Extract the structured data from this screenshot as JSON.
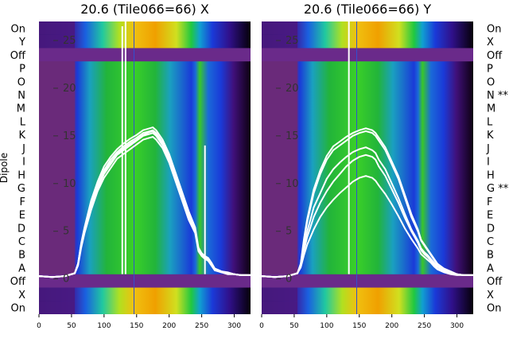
{
  "chart_data": [
    {
      "type": "heatmap",
      "title": "20.6 (Tile066=66) X",
      "ylabel": "Dipole",
      "xlim": [
        0,
        325
      ],
      "x_ticks": [
        0,
        50,
        100,
        150,
        200,
        250,
        300
      ],
      "overlay_y_ticks": [
        0,
        5,
        10,
        15,
        20,
        25
      ],
      "overlay_ylim": [
        -3.7,
        27
      ],
      "rows": [
        "On",
        "Y",
        "Off",
        "P",
        "O",
        "N",
        "M",
        "L",
        "K",
        "J",
        "I",
        "H",
        "G",
        "F",
        "E",
        "D",
        "C",
        "B",
        "A",
        "Off",
        "X",
        "On"
      ],
      "flagged_rows": [],
      "curve_x": [
        0,
        20,
        40,
        55,
        60,
        65,
        70,
        80,
        90,
        100,
        110,
        120,
        130,
        140,
        150,
        160,
        170,
        175,
        180,
        190,
        200,
        210,
        220,
        230,
        240,
        245,
        250,
        255,
        260,
        265,
        270,
        280,
        290,
        300,
        310,
        320,
        325
      ],
      "series": [
        {
          "name": "",
          "values": [
            0.3,
            0.2,
            0.3,
            0.6,
            1.5,
            3.5,
            5,
            7.5,
            9.5,
            11,
            12,
            13,
            13.5,
            14,
            14.5,
            15,
            15.2,
            15.3,
            15,
            14,
            12.5,
            10.5,
            8.5,
            6.5,
            5,
            3,
            2.5,
            2.2,
            2,
            1.5,
            1,
            0.7,
            0.6,
            0.5,
            0.4,
            0.4,
            0.4
          ]
        },
        {
          "name": "",
          "values": [
            0.3,
            0.2,
            0.3,
            0.6,
            1.6,
            3.7,
            5.2,
            7.8,
            9.8,
            11.4,
            12.5,
            13.3,
            13.9,
            14.4,
            14.8,
            15.3,
            15.5,
            15.6,
            15.3,
            14.3,
            12.8,
            10.8,
            8.8,
            6.8,
            5.2,
            3.2,
            2.6,
            2.3,
            2.1,
            1.6,
            1.1,
            0.8,
            0.6,
            0.5,
            0.4,
            0.4,
            0.4
          ]
        },
        {
          "name": "",
          "values": [
            0.3,
            0.2,
            0.3,
            0.6,
            1.4,
            3.3,
            4.8,
            7.2,
            9.2,
            10.6,
            11.6,
            12.6,
            13.1,
            13.6,
            14.1,
            14.6,
            14.8,
            14.9,
            14.6,
            13.7,
            12.2,
            10.2,
            8.2,
            6.2,
            4.8,
            2.9,
            2.4,
            2.1,
            1.9,
            1.4,
            0.9,
            0.7,
            0.5,
            0.5,
            0.4,
            0.4,
            0.4
          ]
        },
        {
          "name": "",
          "values": [
            0.3,
            0.2,
            0.3,
            0.6,
            1.6,
            3.8,
            5.4,
            8.2,
            10.2,
            11.8,
            12.8,
            13.6,
            14.2,
            14.7,
            15.1,
            15.6,
            15.8,
            15.9,
            15.6,
            14.6,
            13.1,
            11.1,
            9.1,
            7.1,
            5.4,
            3.3,
            2.7,
            2.4,
            2.2,
            1.7,
            1.1,
            0.8,
            0.7,
            0.5,
            0.4,
            0.4,
            0.4
          ]
        },
        {
          "name": "",
          "values": [
            0.3,
            0.2,
            0.3,
            0.6,
            1.5,
            3.6,
            5.1,
            7.6,
            9.6,
            11.2,
            12.2,
            13.1,
            13.7,
            14.2,
            14.6,
            15.1,
            15.4,
            15.5,
            15.2,
            14.2,
            12.6,
            10.6,
            8.6,
            6.6,
            5.1,
            3.1,
            2.5,
            2.2,
            2.0,
            1.5,
            1.0,
            0.7,
            0.6,
            0.5,
            0.4,
            0.4,
            0.4
          ]
        }
      ],
      "spikes": [
        {
          "x": 128,
          "top": 26.5
        },
        {
          "x": 133,
          "top": 27
        },
        {
          "x": 255,
          "top": 14
        }
      ]
    },
    {
      "type": "heatmap",
      "title": "20.6 (Tile066=66) Y",
      "ylabel": "",
      "xlim": [
        0,
        325
      ],
      "x_ticks": [
        0,
        50,
        100,
        150,
        200,
        250,
        300
      ],
      "overlay_y_ticks": [
        0,
        5,
        10,
        15,
        20,
        25
      ],
      "overlay_ylim": [
        -3.7,
        27
      ],
      "rows": [
        "On",
        "X",
        "Off",
        "P",
        "O",
        "N **",
        "M",
        "L",
        "K",
        "J",
        "I",
        "H",
        "G **",
        "F",
        "E",
        "D",
        "C",
        "B",
        "A",
        "Off",
        "X",
        "On"
      ],
      "flagged_rows": [
        "N **",
        "G **"
      ],
      "curve_x": [
        0,
        20,
        40,
        55,
        60,
        65,
        70,
        80,
        90,
        100,
        110,
        120,
        130,
        140,
        150,
        160,
        170,
        175,
        180,
        190,
        200,
        210,
        220,
        230,
        240,
        245,
        250,
        255,
        260,
        265,
        270,
        280,
        290,
        300,
        310,
        320,
        325
      ],
      "series": [
        {
          "name": "",
          "values": [
            0.3,
            0.2,
            0.3,
            0.6,
            1.5,
            4,
            6,
            9,
            11,
            12.5,
            13.5,
            14,
            14.5,
            15,
            15.3,
            15.5,
            15.3,
            15,
            14.5,
            13.5,
            12,
            10.5,
            8.5,
            6.5,
            5,
            4,
            3.5,
            3,
            2.5,
            2,
            1.5,
            1,
            0.7,
            0.5,
            0.4,
            0.4,
            0.4
          ]
        },
        {
          "name": "",
          "values": [
            0.3,
            0.2,
            0.3,
            0.6,
            1.5,
            3.5,
            5,
            7.5,
            9,
            10.5,
            11.5,
            12.2,
            12.8,
            13.3,
            13.6,
            13.8,
            13.5,
            13.2,
            12.5,
            11.5,
            10,
            8.5,
            6.8,
            5.2,
            4,
            3.2,
            2.8,
            2.5,
            2.1,
            1.7,
            1.3,
            0.9,
            0.6,
            0.5,
            0.4,
            0.4,
            0.4
          ]
        },
        {
          "name": "",
          "values": [
            0.3,
            0.2,
            0.3,
            0.6,
            1.4,
            3,
            4.4,
            6.5,
            8,
            9.2,
            10.2,
            11,
            11.8,
            12.4,
            12.8,
            13,
            12.8,
            12.5,
            11.8,
            10.8,
            9.4,
            8,
            6.4,
            5,
            3.8,
            3,
            2.6,
            2.3,
            1.9,
            1.5,
            1.1,
            0.8,
            0.6,
            0.5,
            0.4,
            0.4,
            0.4
          ]
        },
        {
          "name": "",
          "values": [
            0.3,
            0.2,
            0.3,
            0.6,
            1.2,
            2.5,
            3.6,
            5.2,
            6.5,
            7.5,
            8.3,
            9,
            9.6,
            10.2,
            10.6,
            10.8,
            10.6,
            10.3,
            9.8,
            8.9,
            7.8,
            6.6,
            5.3,
            4.2,
            3.2,
            2.6,
            2.3,
            2.0,
            1.7,
            1.3,
            1.0,
            0.7,
            0.5,
            0.4,
            0.4,
            0.4,
            0.4
          ]
        },
        {
          "name": "",
          "values": [
            0.3,
            0.2,
            0.3,
            0.6,
            1.6,
            4.2,
            6.3,
            9.4,
            11.4,
            12.9,
            13.9,
            14.4,
            14.9,
            15.3,
            15.6,
            15.8,
            15.6,
            15.3,
            14.8,
            13.8,
            12.3,
            10.8,
            8.8,
            6.8,
            5.2,
            4.1,
            3.6,
            3.1,
            2.6,
            2.1,
            1.6,
            1.1,
            0.8,
            0.5,
            0.4,
            0.4,
            0.4
          ]
        }
      ],
      "spikes": [
        {
          "x": 134,
          "top": 27
        }
      ]
    }
  ]
}
